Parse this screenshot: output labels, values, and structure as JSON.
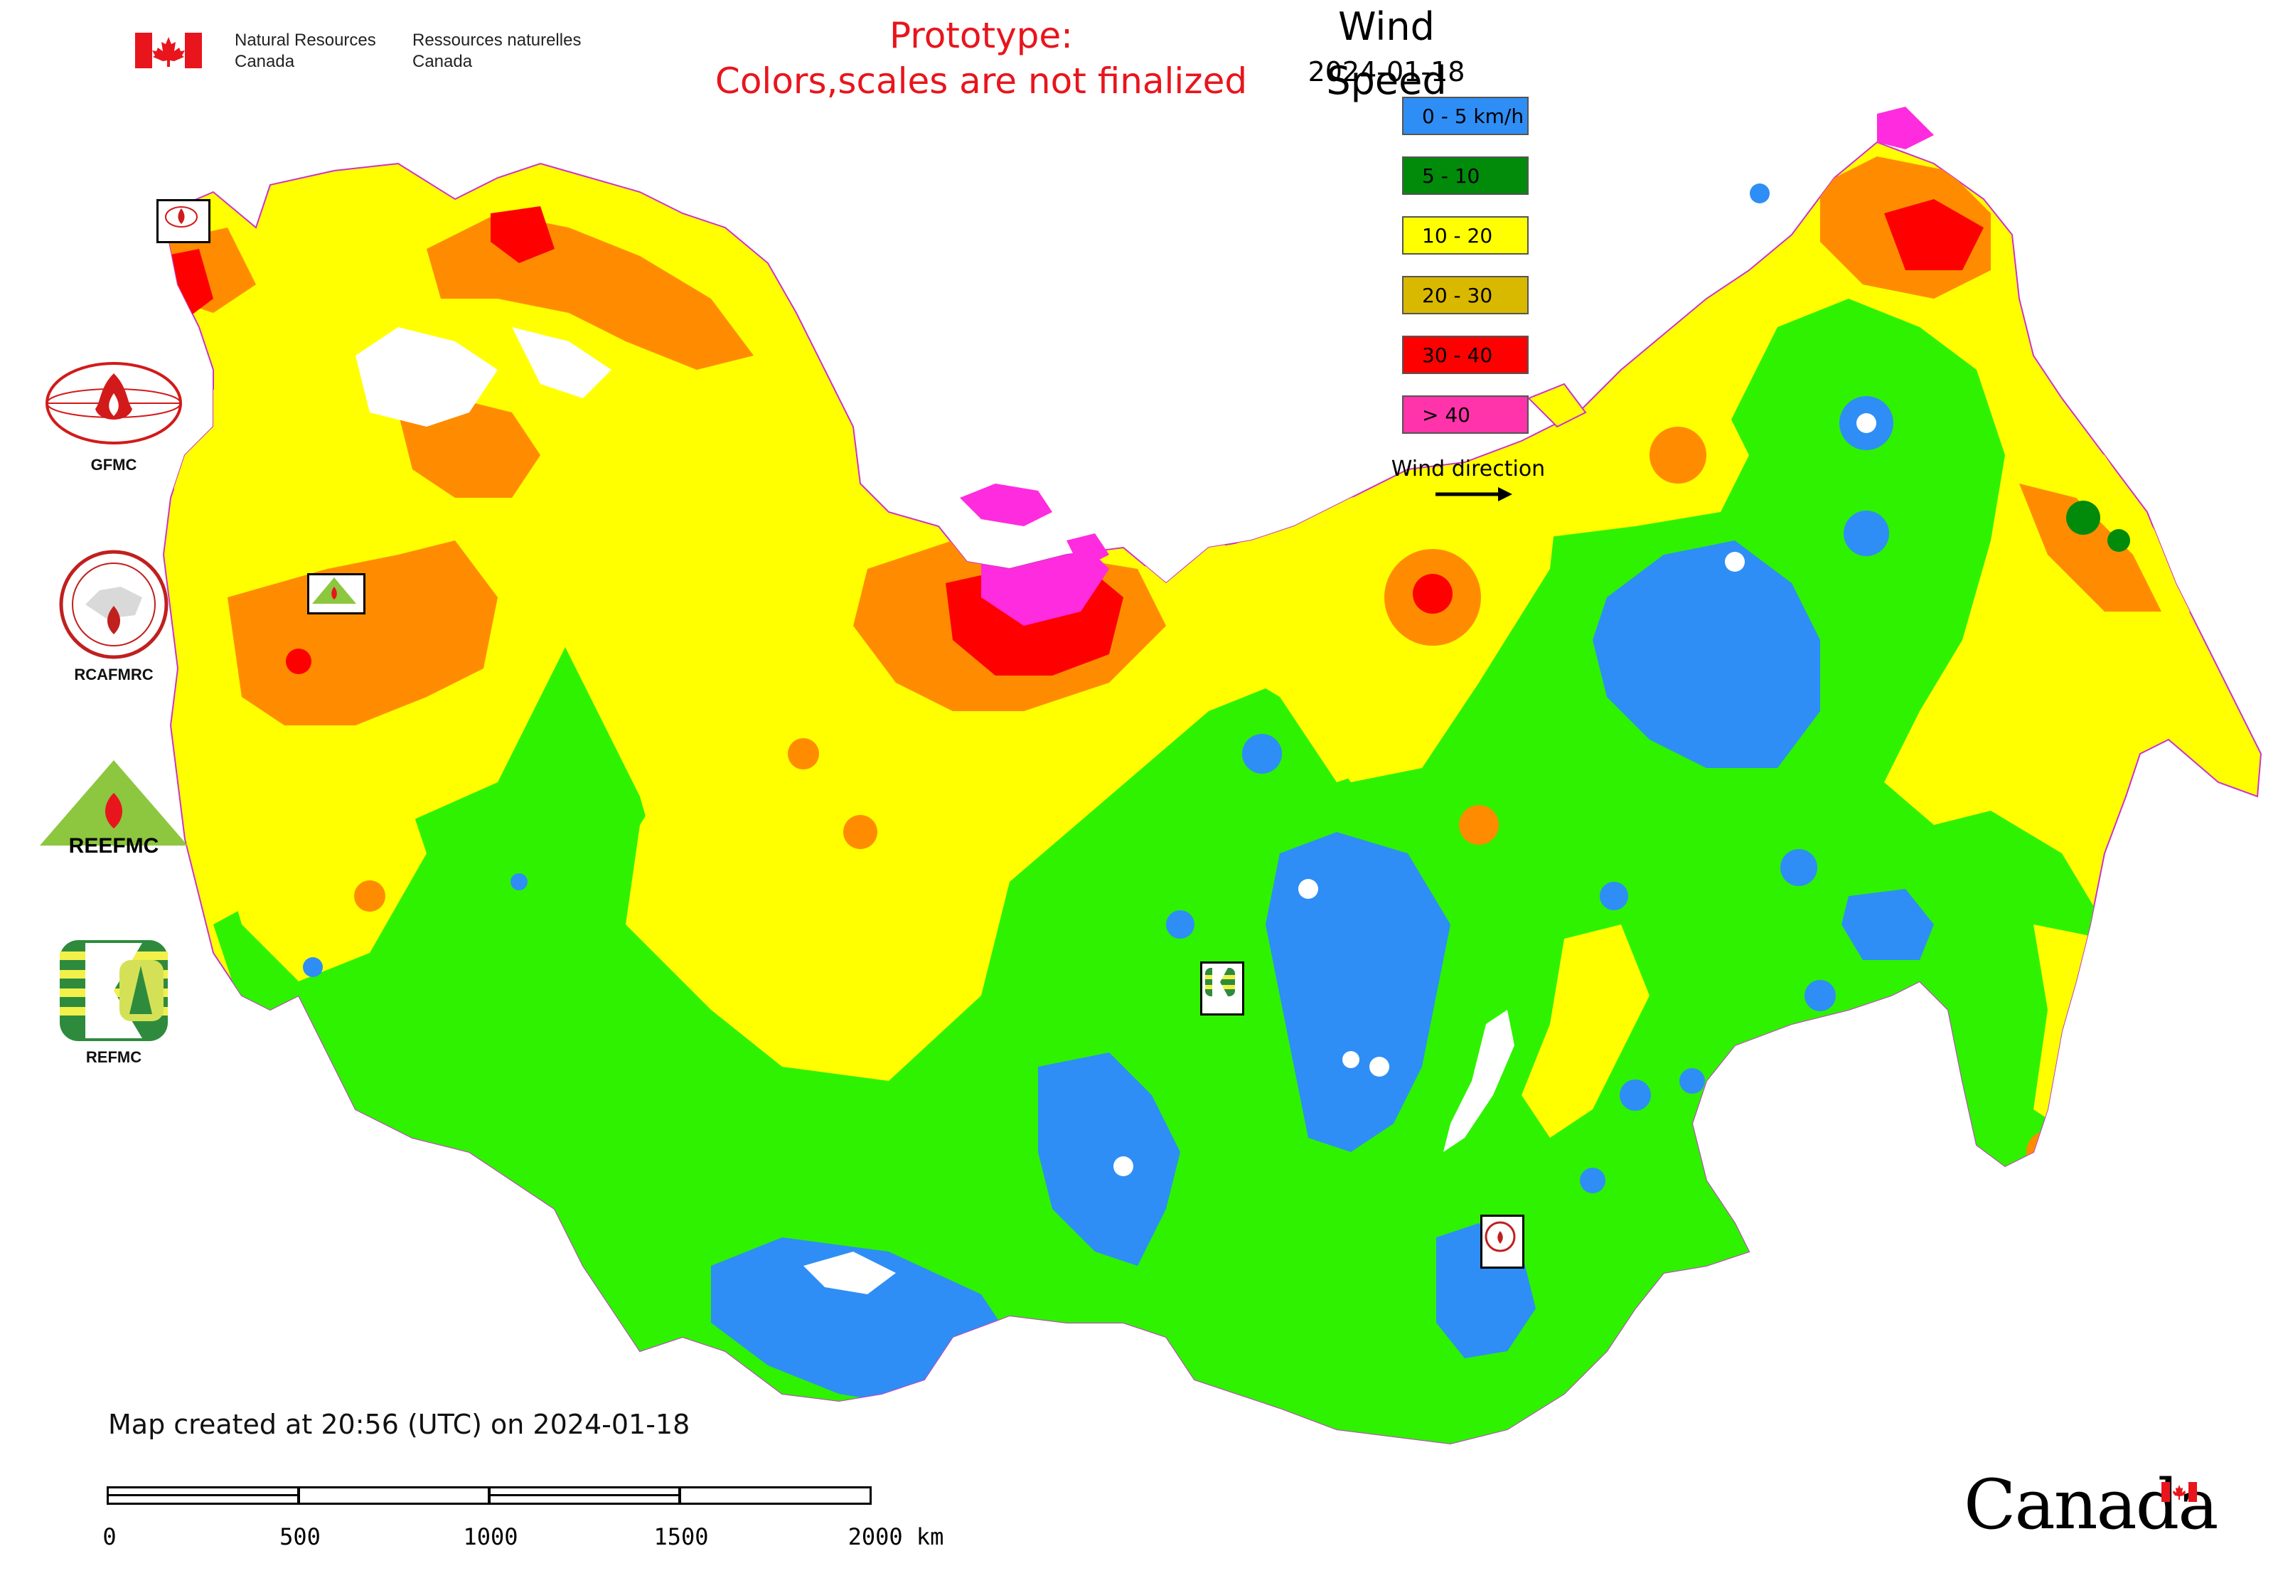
{
  "header": {
    "org_en_line1": "Natural Resources",
    "org_en_line2": "Canada",
    "org_fr_line1": "Ressources naturelles",
    "org_fr_line2": "Canada",
    "prototype_line1": "Prototype:",
    "prototype_line2": "Colors,scales are not finalized",
    "flag_icon": "canada-flag-icon",
    "colors": {
      "prototype_text": "#e8151d",
      "flag_red": "#e8151d"
    }
  },
  "legend": {
    "title": "Wind Speed",
    "date": "2024-01-18",
    "items": [
      {
        "label": "0 - 5 km/h",
        "color": "#2e8ef5"
      },
      {
        "label": "5 - 10",
        "color": "#028a0a"
      },
      {
        "label": "10 - 20",
        "color": "#ffff00"
      },
      {
        "label": "20 - 30",
        "color": "#d9b800"
      },
      {
        "label": "30 - 40",
        "color": "#ff0000"
      },
      {
        "label": "> 40",
        "color": "#ff33aa"
      }
    ],
    "wind_direction_label": "Wind direction",
    "wind_direction_icon": "right-arrow-icon"
  },
  "logos": [
    {
      "label": "GFMC",
      "icon": "gfmc-logo-icon"
    },
    {
      "label": "RCAFMRC",
      "icon": "rcafmrc-logo-icon"
    },
    {
      "label": "",
      "icon": "reefmc-logo-icon",
      "wordmark": "REEFMC"
    },
    {
      "label": "REFMC",
      "icon": "refmc-logo-icon"
    }
  ],
  "map": {
    "region_colors": {
      "very_low": "#2e8ef5",
      "low": "#2ef200",
      "mid": "#ffff00",
      "high": "#ff8c00",
      "very_high": "#ff0000",
      "extreme": "#ff2bde",
      "water": "#ffffff",
      "border": "#cc33cc"
    },
    "markers": [
      {
        "name": "gfmc-map-marker",
        "label": "GFMC"
      },
      {
        "name": "reefmc-map-marker",
        "label": "REEFMC"
      },
      {
        "name": "refmc-map-marker",
        "label": "REFMC"
      },
      {
        "name": "rcafmrc-map-marker",
        "label": "RCAFMRC"
      }
    ]
  },
  "footer": {
    "created": "Map created at 20:56 (UTC) on 2024-01-18",
    "scale_ticks": [
      "0",
      "500",
      "1000",
      "1500",
      "2000 km"
    ],
    "wordmark": "Canada"
  }
}
